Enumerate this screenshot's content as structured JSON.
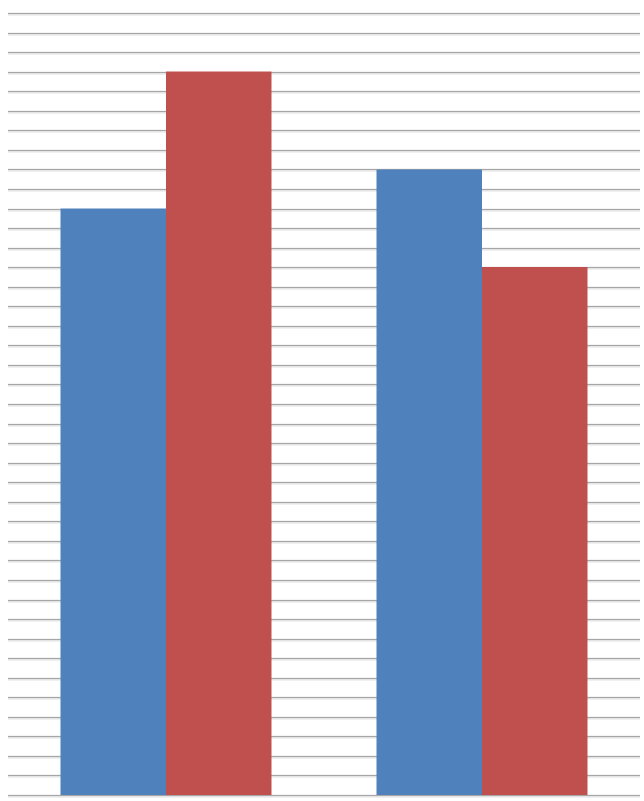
{
  "chart_data": {
    "type": "bar",
    "categories": [
      "",
      ""
    ],
    "series": [
      {
        "values": [
          30,
          32
        ],
        "color": "#4f81bd"
      },
      {
        "values": [
          37,
          27
        ],
        "color": "#c0504d"
      }
    ],
    "ylim": [
      0,
      40
    ],
    "grid": true,
    "grid_step": 1,
    "legend": "none",
    "title": "",
    "xlabel": "",
    "ylabel": ""
  }
}
